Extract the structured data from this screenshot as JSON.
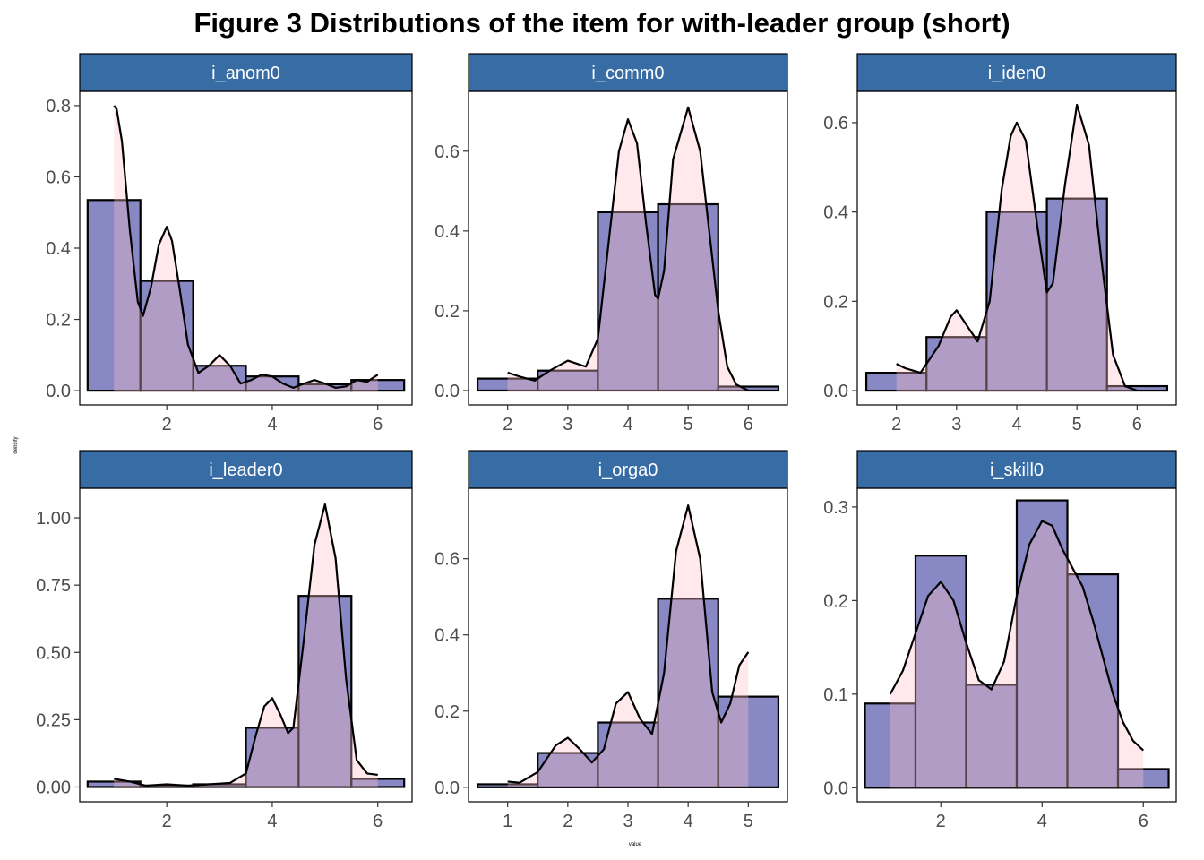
{
  "figure": {
    "title": "Figure  3 Distributions of the item for with-leader group (short)",
    "xlabel": "value",
    "ylabel": "density"
  },
  "colors": {
    "strip_fill": "#386CA5",
    "histogram_fill": "#7B7CBE",
    "density_fill": "#FFC0CB",
    "density_line": "#000000",
    "bar_outline": "#000000"
  },
  "chart_data": [
    {
      "type": "bar",
      "panel": "i_anom0",
      "bin_width": 1,
      "bins": [
        1,
        2,
        3,
        4,
        5,
        6
      ],
      "values": [
        0.535,
        0.308,
        0.07,
        0.04,
        0.018,
        0.03
      ],
      "density": {
        "x": [
          1.0,
          1.05,
          1.15,
          1.3,
          1.45,
          1.55,
          1.7,
          1.85,
          2.0,
          2.1,
          2.25,
          2.4,
          2.6,
          2.8,
          3.0,
          3.2,
          3.4,
          3.6,
          3.8,
          4.0,
          4.2,
          4.4,
          4.6,
          4.8,
          5.0,
          5.2,
          5.4,
          5.6,
          5.8,
          6.0
        ],
        "y": [
          0.8,
          0.79,
          0.7,
          0.45,
          0.25,
          0.21,
          0.29,
          0.41,
          0.46,
          0.42,
          0.28,
          0.13,
          0.05,
          0.07,
          0.1,
          0.07,
          0.02,
          0.03,
          0.045,
          0.04,
          0.02,
          0.008,
          0.02,
          0.03,
          0.02,
          0.008,
          0.012,
          0.03,
          0.025,
          0.045
        ]
      },
      "xlim": [
        0.35,
        6.65
      ],
      "ylim": [
        -0.04,
        0.84
      ],
      "x_ticks": [
        2,
        4,
        6
      ],
      "y_ticks": [
        0.0,
        0.2,
        0.4,
        0.6,
        0.8
      ],
      "y_tick_labels": [
        "0.0",
        "0.2",
        "0.4",
        "0.6",
        "0.8"
      ]
    },
    {
      "type": "bar",
      "panel": "i_comm0",
      "bin_width": 1,
      "bins": [
        2,
        3,
        4,
        5,
        6
      ],
      "values": [
        0.03,
        0.05,
        0.447,
        0.467,
        0.01
      ],
      "density": {
        "x": [
          2.0,
          2.2,
          2.45,
          2.7,
          3.0,
          3.3,
          3.5,
          3.7,
          3.85,
          4.0,
          4.15,
          4.3,
          4.45,
          4.5,
          4.6,
          4.75,
          5.0,
          5.2,
          5.35,
          5.5,
          5.65,
          5.8,
          6.0
        ],
        "y": [
          0.045,
          0.035,
          0.025,
          0.05,
          0.075,
          0.06,
          0.13,
          0.4,
          0.6,
          0.68,
          0.62,
          0.42,
          0.24,
          0.23,
          0.3,
          0.58,
          0.71,
          0.6,
          0.4,
          0.2,
          0.06,
          0.015,
          0.0
        ]
      },
      "xlim": [
        1.35,
        6.65
      ],
      "ylim": [
        -0.036,
        0.75
      ],
      "x_ticks": [
        2,
        3,
        4,
        5,
        6
      ],
      "y_ticks": [
        0.0,
        0.2,
        0.4,
        0.6
      ],
      "y_tick_labels": [
        "0.0",
        "0.2",
        "0.4",
        "0.6"
      ]
    },
    {
      "type": "bar",
      "panel": "i_iden0",
      "bin_width": 1,
      "bins": [
        2,
        3,
        4,
        5,
        6
      ],
      "values": [
        0.04,
        0.12,
        0.4,
        0.43,
        0.01
      ],
      "density": {
        "x": [
          2.0,
          2.15,
          2.4,
          2.7,
          2.9,
          3.0,
          3.15,
          3.35,
          3.55,
          3.75,
          3.9,
          4.0,
          4.15,
          4.35,
          4.5,
          4.6,
          4.8,
          5.0,
          5.2,
          5.4,
          5.6,
          5.8,
          6.0
        ],
        "y": [
          0.06,
          0.05,
          0.04,
          0.1,
          0.165,
          0.18,
          0.15,
          0.11,
          0.2,
          0.45,
          0.57,
          0.6,
          0.56,
          0.36,
          0.22,
          0.24,
          0.46,
          0.64,
          0.55,
          0.3,
          0.08,
          0.01,
          0.0
        ]
      },
      "xlim": [
        1.35,
        6.65
      ],
      "ylim": [
        -0.032,
        0.67
      ],
      "x_ticks": [
        2,
        3,
        4,
        5,
        6
      ],
      "y_ticks": [
        0.0,
        0.2,
        0.4,
        0.6
      ],
      "y_tick_labels": [
        "0.0",
        "0.2",
        "0.4",
        "0.6"
      ]
    },
    {
      "type": "bar",
      "panel": "i_leader0",
      "bin_width": 1,
      "bins": [
        1,
        2,
        3,
        4,
        5,
        6
      ],
      "values": [
        0.02,
        0.005,
        0.01,
        0.22,
        0.71,
        0.03
      ],
      "density": {
        "x": [
          1.0,
          1.3,
          1.6,
          2.0,
          2.4,
          2.8,
          3.2,
          3.5,
          3.7,
          3.85,
          4.0,
          4.15,
          4.3,
          4.4,
          4.6,
          4.8,
          5.0,
          5.2,
          5.4,
          5.6,
          5.8,
          6.0
        ],
        "y": [
          0.03,
          0.02,
          0.005,
          0.01,
          0.005,
          0.01,
          0.015,
          0.05,
          0.2,
          0.3,
          0.33,
          0.27,
          0.2,
          0.22,
          0.55,
          0.9,
          1.05,
          0.85,
          0.4,
          0.1,
          0.05,
          0.045
        ]
      },
      "xlim": [
        0.35,
        6.65
      ],
      "ylim": [
        -0.055,
        1.11
      ],
      "x_ticks": [
        2,
        4,
        6
      ],
      "y_ticks": [
        0.0,
        0.25,
        0.5,
        0.75,
        1.0
      ],
      "y_tick_labels": [
        "0.00",
        "0.25",
        "0.50",
        "0.75",
        "1.00"
      ]
    },
    {
      "type": "bar",
      "panel": "i_orga0",
      "bin_width": 1,
      "bins": [
        1,
        2,
        3,
        4,
        5
      ],
      "values": [
        0.008,
        0.09,
        0.17,
        0.495,
        0.238
      ],
      "density": {
        "x": [
          1.0,
          1.2,
          1.5,
          1.8,
          2.0,
          2.2,
          2.4,
          2.6,
          2.8,
          3.0,
          3.2,
          3.4,
          3.6,
          3.8,
          4.0,
          4.2,
          4.4,
          4.55,
          4.7,
          4.85,
          5.0
        ],
        "y": [
          0.015,
          0.012,
          0.04,
          0.11,
          0.13,
          0.1,
          0.065,
          0.1,
          0.22,
          0.25,
          0.18,
          0.14,
          0.3,
          0.62,
          0.74,
          0.6,
          0.25,
          0.17,
          0.22,
          0.32,
          0.355
        ]
      },
      "xlim": [
        0.35,
        5.65
      ],
      "ylim": [
        -0.038,
        0.785
      ],
      "x_ticks": [
        1,
        2,
        3,
        4,
        5
      ],
      "y_ticks": [
        0.0,
        0.2,
        0.4,
        0.6
      ],
      "y_tick_labels": [
        "0.0",
        "0.2",
        "0.4",
        "0.6"
      ]
    },
    {
      "type": "bar",
      "panel": "i_skill0",
      "bin_width": 1,
      "bins": [
        1,
        2,
        3,
        4,
        5,
        6
      ],
      "values": [
        0.09,
        0.248,
        0.11,
        0.307,
        0.228,
        0.02
      ],
      "density": {
        "x": [
          1.0,
          1.25,
          1.5,
          1.75,
          2.0,
          2.25,
          2.5,
          2.75,
          3.0,
          3.25,
          3.5,
          3.75,
          4.0,
          4.2,
          4.4,
          4.6,
          4.8,
          5.0,
          5.2,
          5.4,
          5.6,
          5.8,
          6.0
        ],
        "y": [
          0.1,
          0.125,
          0.165,
          0.205,
          0.22,
          0.2,
          0.155,
          0.115,
          0.105,
          0.135,
          0.205,
          0.26,
          0.285,
          0.28,
          0.255,
          0.235,
          0.215,
          0.18,
          0.14,
          0.1,
          0.07,
          0.05,
          0.04
        ]
      },
      "xlim": [
        0.35,
        6.65
      ],
      "ylim": [
        -0.015,
        0.32
      ],
      "x_ticks": [
        2,
        4,
        6
      ],
      "y_ticks": [
        0.0,
        0.1,
        0.2,
        0.3
      ],
      "y_tick_labels": [
        "0.0",
        "0.1",
        "0.2",
        "0.3"
      ]
    }
  ]
}
